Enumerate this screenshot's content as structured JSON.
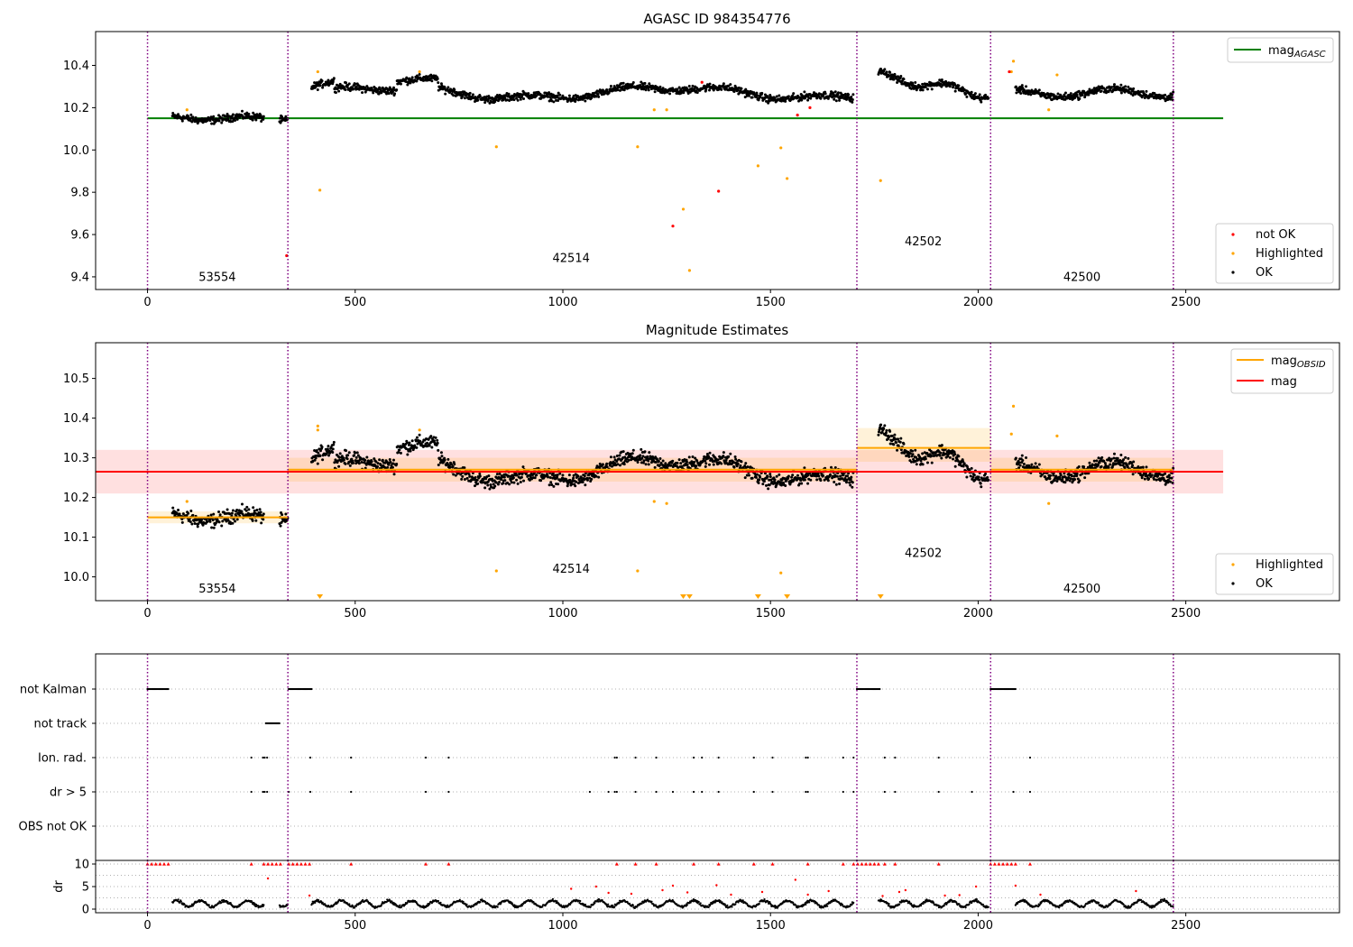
{
  "figure": {
    "width": 1500,
    "height": 1050
  },
  "chart_data": [
    {
      "type": "scatter",
      "title": "AGASC ID 984354776",
      "xlim": [
        -125,
        2870
      ],
      "ylim": [
        9.34,
        10.56
      ],
      "xticks": [
        0,
        500,
        1000,
        1500,
        2000,
        2500
      ],
      "yticks": [
        9.4,
        9.6,
        9.8,
        10.0,
        10.2,
        10.4
      ],
      "obsid_boundaries": [
        0,
        338,
        1708,
        2030,
        2470
      ],
      "obsid_labels": [
        {
          "text": "53554",
          "x": 168,
          "y": 9.38
        },
        {
          "text": "42514",
          "x": 1020,
          "y": 9.47
        },
        {
          "text": "42502",
          "x": 1868,
          "y": 9.55
        },
        {
          "text": "42500",
          "x": 2250,
          "y": 9.38
        }
      ],
      "mag_agasc": {
        "value": 10.15,
        "x_range": [
          0,
          2590
        ],
        "color": "#008000"
      },
      "legend_top": [
        {
          "label": "mag",
          "subscript": "AGASC",
          "color": "#008000"
        }
      ],
      "legend_bottom": [
        {
          "label": "not OK",
          "color": "#ff0000"
        },
        {
          "label": "Highlighted",
          "color": "#ffa500"
        },
        {
          "label": "OK",
          "color": "#000000"
        }
      ],
      "highlighted_points": [
        [
          95,
          10.19
        ],
        [
          410,
          10.37
        ],
        [
          415,
          9.81
        ],
        [
          655,
          10.37
        ],
        [
          840,
          10.015
        ],
        [
          1180,
          10.015
        ],
        [
          1220,
          10.19
        ],
        [
          1250,
          10.19
        ],
        [
          1290,
          9.72
        ],
        [
          1305,
          9.43
        ],
        [
          1470,
          9.925
        ],
        [
          1525,
          10.01
        ],
        [
          1540,
          9.865
        ],
        [
          1765,
          9.855
        ],
        [
          2085,
          10.42
        ],
        [
          2080,
          10.37
        ],
        [
          2190,
          10.355
        ],
        [
          2170,
          10.19
        ]
      ],
      "not_ok_points": [
        [
          335,
          9.5
        ],
        [
          1265,
          9.64
        ],
        [
          1375,
          9.805
        ],
        [
          1335,
          10.32
        ],
        [
          1565,
          10.165
        ],
        [
          1595,
          10.2
        ],
        [
          2075,
          10.37
        ]
      ]
    },
    {
      "type": "scatter",
      "title": "Magnitude Estimates",
      "xlim": [
        -125,
        2870
      ],
      "ylim": [
        9.94,
        10.59
      ],
      "xticks": [
        0,
        500,
        1000,
        1500,
        2000,
        2500
      ],
      "yticks": [
        10.0,
        10.1,
        10.2,
        10.3,
        10.4,
        10.5
      ],
      "obsid_boundaries": [
        0,
        338,
        1708,
        2030,
        2470
      ],
      "obsid_labels": [
        {
          "text": "53554",
          "x": 168,
          "y": 9.96
        },
        {
          "text": "42514",
          "x": 1020,
          "y": 10.01
        },
        {
          "text": "42502",
          "x": 1868,
          "y": 10.05
        },
        {
          "text": "42500",
          "x": 2250,
          "y": 9.96
        }
      ],
      "mag": {
        "value": 10.265,
        "band": [
          10.21,
          10.32
        ],
        "x_range": [
          -125,
          2590
        ],
        "color": "#ff0000"
      },
      "mag_obsid_segments": [
        {
          "x_range": [
            0,
            338
          ],
          "value": 10.15,
          "band": [
            10.135,
            10.165
          ]
        },
        {
          "x_range": [
            338,
            1708
          ],
          "value": 10.27,
          "band": [
            10.24,
            10.3
          ]
        },
        {
          "x_range": [
            1708,
            2030
          ],
          "value": 10.325,
          "band": [
            10.29,
            10.375
          ]
        },
        {
          "x_range": [
            2030,
            2470
          ],
          "value": 10.27,
          "band": [
            10.24,
            10.3
          ]
        }
      ],
      "legend_top": [
        {
          "label": "mag",
          "subscript": "OBSID",
          "color": "#ffa500"
        },
        {
          "label": "mag",
          "subscript": "",
          "color": "#ff0000"
        }
      ],
      "legend_bottom": [
        {
          "label": "Highlighted",
          "color": "#ffa500"
        },
        {
          "label": "OK",
          "color": "#000000"
        }
      ],
      "highlighted_points": [
        [
          95,
          10.19
        ],
        [
          410,
          10.37
        ],
        [
          410,
          10.38
        ],
        [
          655,
          10.37
        ],
        [
          840,
          10.015
        ],
        [
          1180,
          10.015
        ],
        [
          1220,
          10.19
        ],
        [
          1250,
          10.185
        ],
        [
          1525,
          10.01
        ],
        [
          2085,
          10.43
        ],
        [
          2080,
          10.36
        ],
        [
          2190,
          10.355
        ],
        [
          2170,
          10.185
        ]
      ],
      "offscale_markers_x": [
        415,
        1290,
        1305,
        1470,
        1540,
        1765
      ]
    },
    {
      "type": "scatter",
      "title": "",
      "xlim": [
        -125,
        2870
      ],
      "xticks": [
        0,
        500,
        1000,
        1500,
        2000,
        2500
      ],
      "obsid_boundaries": [
        0,
        338,
        1708,
        2030,
        2470
      ],
      "flag_rows": [
        "not Kalman",
        "not track",
        "Ion. rad.",
        "dr > 5",
        "OBS not OK"
      ],
      "flag_ranges": [
        {
          "row": 0,
          "ranges": [
            [
              0,
              50
            ],
            [
              340,
              395
            ],
            [
              1708,
              1765
            ],
            [
              2030,
              2090
            ]
          ]
        },
        {
          "row": 1,
          "ranges": [
            [
              285,
              318
            ]
          ]
        }
      ],
      "flag_points": [
        {
          "row": 2,
          "x": [
            250,
            278,
            282,
            288,
            392,
            490,
            670,
            725,
            1125,
            1130,
            1175,
            1225,
            1315,
            1335,
            1375,
            1460,
            1505,
            1585,
            1590,
            1675,
            1700,
            1775,
            1800,
            1905,
            2125
          ]
        },
        {
          "row": 3,
          "x": [
            250,
            278,
            282,
            288,
            340,
            392,
            490,
            670,
            725,
            1065,
            1110,
            1125,
            1130,
            1175,
            1225,
            1265,
            1315,
            1335,
            1375,
            1460,
            1505,
            1585,
            1590,
            1675,
            1700,
            1775,
            1800,
            1905,
            1985,
            2085,
            2125
          ]
        }
      ],
      "dr": {
        "ylabel": "dr",
        "yticks": [
          0,
          5,
          10
        ],
        "ylim": [
          -0.8,
          10.8
        ],
        "capped_x": [
          0,
          10,
          20,
          30,
          40,
          50,
          250,
          280,
          290,
          300,
          310,
          320,
          340,
          350,
          360,
          370,
          380,
          390,
          490,
          670,
          725,
          1130,
          1175,
          1225,
          1315,
          1375,
          1460,
          1505,
          1590,
          1675,
          1700,
          1710,
          1720,
          1730,
          1740,
          1750,
          1760,
          1775,
          1800,
          1905,
          2030,
          2040,
          2050,
          2060,
          2070,
          2080,
          2090,
          2125
        ],
        "red_points": [
          [
            290,
            6.8
          ],
          [
            390,
            3.0
          ],
          [
            1020,
            4.5
          ],
          [
            1080,
            5.0
          ],
          [
            1110,
            3.6
          ],
          [
            1165,
            3.4
          ],
          [
            1240,
            4.2
          ],
          [
            1265,
            5.2
          ],
          [
            1300,
            3.7
          ],
          [
            1370,
            5.3
          ],
          [
            1405,
            3.2
          ],
          [
            1480,
            3.8
          ],
          [
            1560,
            6.5
          ],
          [
            1590,
            3.2
          ],
          [
            1640,
            4.0
          ],
          [
            1770,
            2.9
          ],
          [
            1810,
            3.8
          ],
          [
            1825,
            4.2
          ],
          [
            1920,
            3.0
          ],
          [
            1955,
            3.1
          ],
          [
            1995,
            5.0
          ],
          [
            2090,
            5.2
          ],
          [
            2150,
            3.2
          ],
          [
            2380,
            4.0
          ]
        ]
      }
    }
  ]
}
